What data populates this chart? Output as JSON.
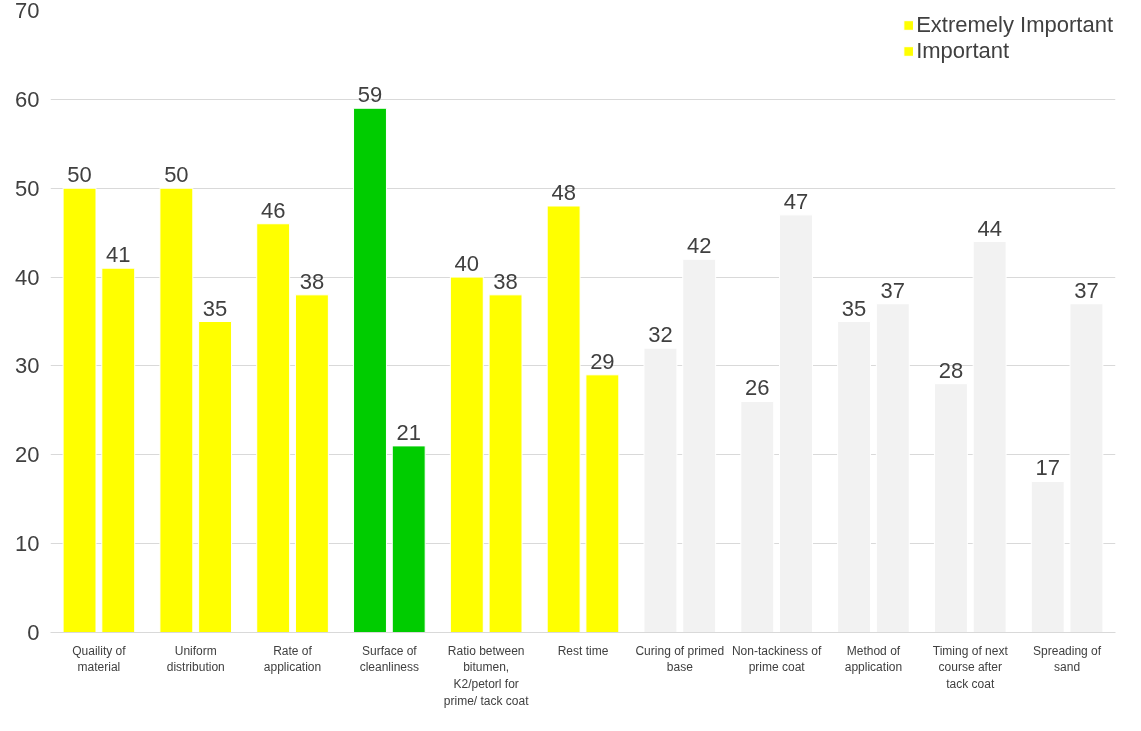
{
  "chart_data": {
    "type": "bar",
    "categories": [
      "Quaility of material",
      "Uniform distribution",
      "Rate of application",
      "Surface of cleanliness",
      "Ratio between bitumen, K2/petorl for prime/ tack coat",
      "Rest time",
      "Curing of primed base",
      "Non-tackiness of prime coat",
      "Method of application",
      "Timing of next course after tack coat",
      "Spreading of sand"
    ],
    "series": [
      {
        "name": "Extremely Important",
        "values": [
          50,
          50,
          46,
          59,
          40,
          48,
          32,
          26,
          35,
          28,
          17
        ],
        "colors": [
          "#ffff00",
          "#ffff00",
          "#ffff00",
          "#00cc00",
          "#ffff00",
          "#ffff00",
          "#f2f2f2",
          "#f2f2f2",
          "#f2f2f2",
          "#f2f2f2",
          "#f2f2f2"
        ]
      },
      {
        "name": "Important",
        "values": [
          41,
          35,
          38,
          21,
          38,
          29,
          42,
          47,
          37,
          44,
          37
        ],
        "colors": [
          "#ffff00",
          "#ffff00",
          "#ffff00",
          "#00cc00",
          "#ffff00",
          "#ffff00",
          "#f2f2f2",
          "#f2f2f2",
          "#f2f2f2",
          "#f2f2f2",
          "#f2f2f2"
        ]
      }
    ],
    "ylim": [
      0,
      70
    ],
    "yticks": [
      0,
      10,
      20,
      30,
      40,
      50,
      60,
      70
    ],
    "grid": "y",
    "legend": "top right",
    "data_labels": true
  }
}
